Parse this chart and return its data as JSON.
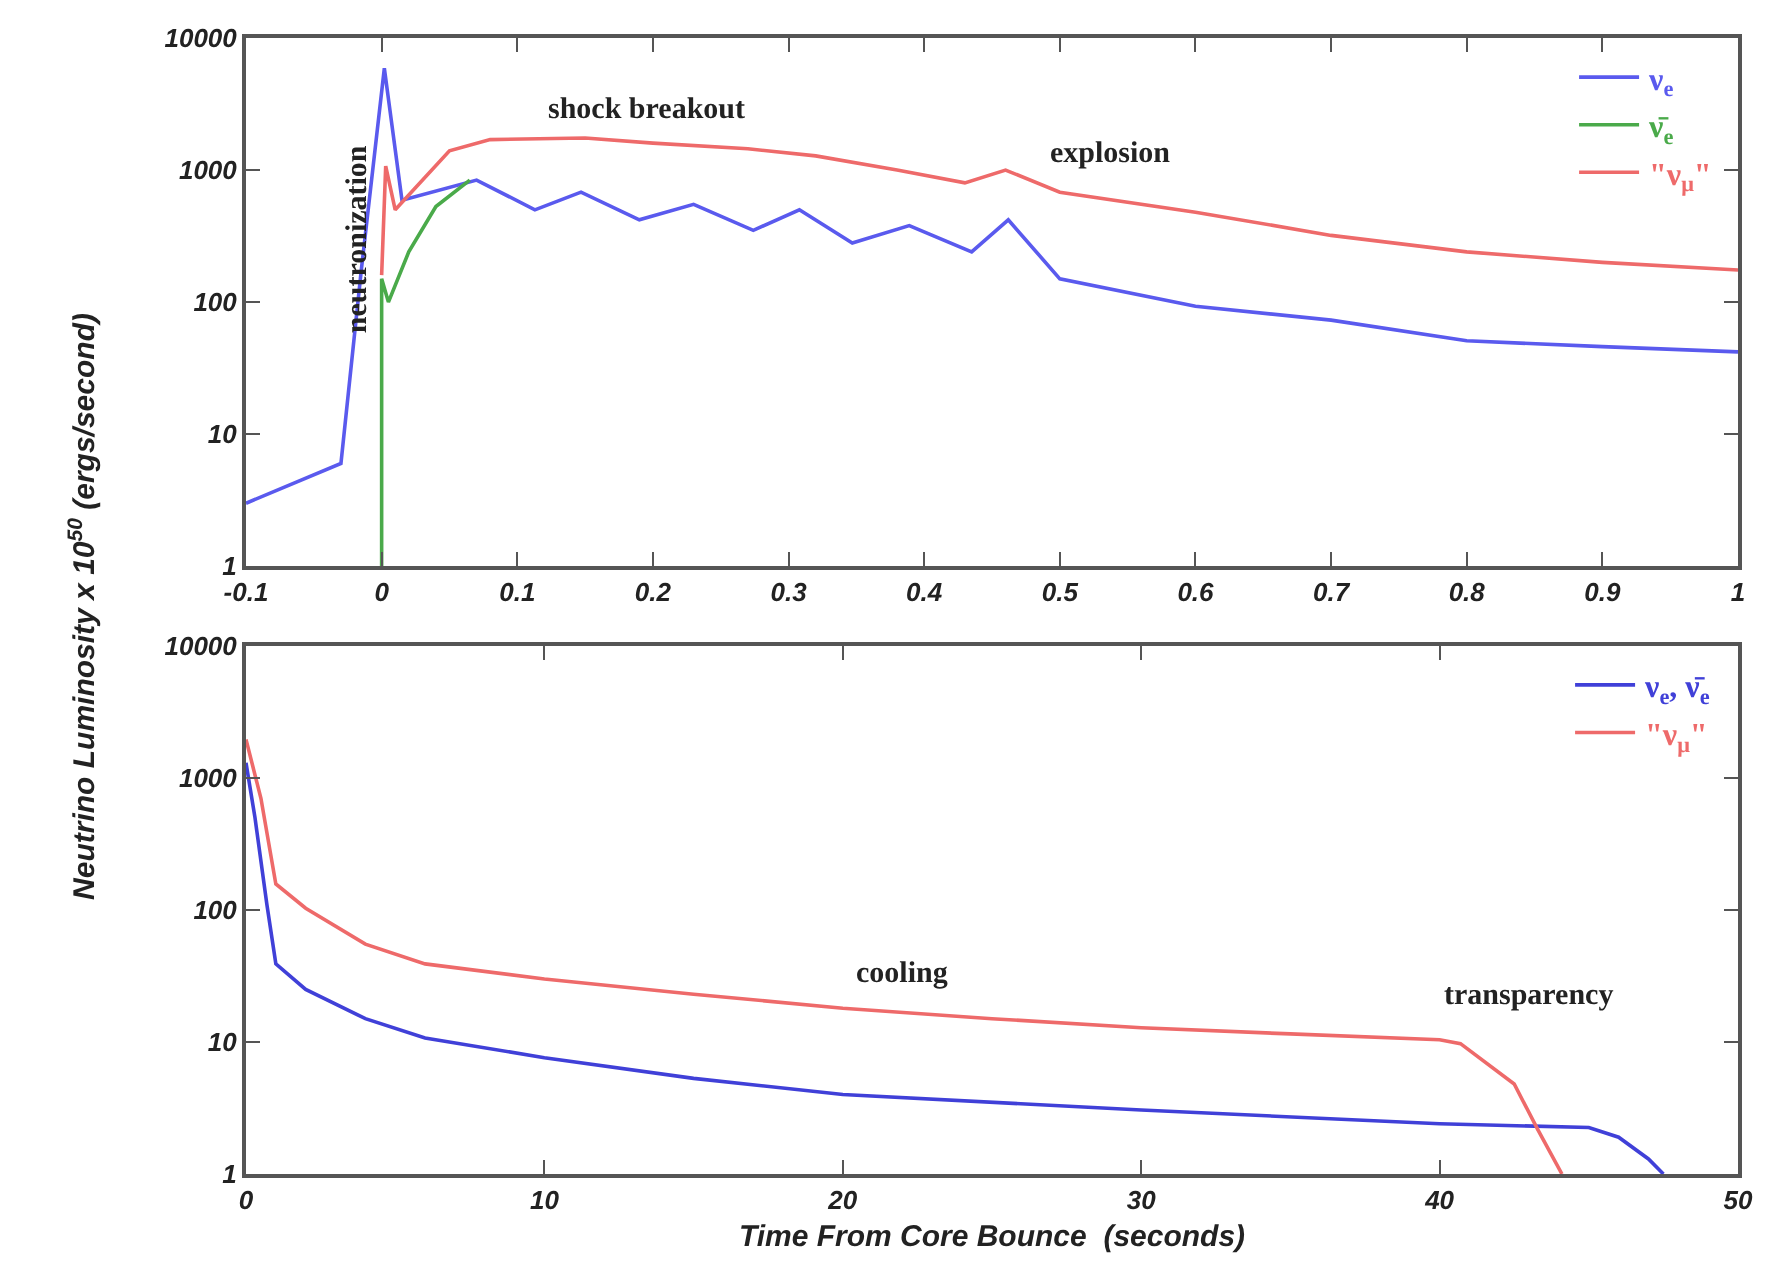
{
  "chart_data": [
    {
      "type": "line",
      "ylabel": "Neutrino Luminosity x 10$^{50}$ (ergs/second)",
      "log": "y",
      "legend": "top right",
      "line_style": "solid",
      "xlim": [
        -0.1,
        1
      ],
      "xticks": [
        -0.1,
        0,
        0.1,
        0.2,
        0.3,
        0.4,
        0.5,
        0.6,
        0.7,
        0.8,
        0.9,
        1
      ],
      "ylim": [
        1,
        10000
      ],
      "yticks": [
        1,
        10,
        100,
        1000,
        10000
      ],
      "series": [
        {
          "name": "ν$_{e}$",
          "color": "#5a5aee",
          "x": [
            -0.1,
            -0.03,
            -0.015,
            0.002,
            0.015,
            0.07,
            0.113,
            0.147,
            0.19,
            0.23,
            0.274,
            0.308,
            0.347,
            0.389,
            0.435,
            0.462,
            0.5,
            0.6,
            0.7,
            0.8,
            0.9,
            1
          ],
          "values": [
            3,
            6,
            175,
            5900,
            590,
            840,
            500,
            680,
            420,
            550,
            350,
            500,
            280,
            380,
            240,
            420,
            150,
            93,
            73,
            51,
            46,
            42
          ]
        },
        {
          "name": "ν̄$_{e}$",
          "color": "#4aaa4a",
          "x": [
            0,
            0,
            0.005,
            0.02,
            0.04,
            0.065
          ],
          "values": [
            1,
            150,
            100,
            240,
            530,
            840
          ]
        },
        {
          "name": "\"ν$_{μ}$\"",
          "color": "#ee6a6a",
          "x": [
            0,
            0.003,
            0.01,
            0.05,
            0.08,
            0.15,
            0.2,
            0.27,
            0.32,
            0.38,
            0.43,
            0.46,
            0.5,
            0.6,
            0.7,
            0.8,
            0.9,
            1
          ],
          "values": [
            160,
            1070,
            500,
            1400,
            1700,
            1750,
            1600,
            1450,
            1280,
            1000,
            800,
            1000,
            680,
            480,
            320,
            240,
            200,
            175
          ]
        }
      ],
      "annotations": [
        "neutronization",
        "shock breakout",
        "explosion"
      ]
    },
    {
      "type": "line",
      "xlabel": "Time From Core Bounce  (seconds)",
      "log": "y",
      "legend": "top right",
      "line_style": "solid",
      "xlim": [
        0,
        50
      ],
      "xticks": [
        0,
        10,
        20,
        30,
        40,
        50
      ],
      "ylim": [
        1,
        10000
      ],
      "yticks": [
        1,
        10,
        100,
        1000,
        10000
      ],
      "series": [
        {
          "name": "ν$_{e}$, ν̄$_{e}$",
          "color": "#4040d8",
          "x": [
            0,
            0.3,
            0.7,
            1,
            2,
            4,
            6,
            10,
            15,
            20,
            30,
            40,
            45,
            46,
            47,
            47.5
          ],
          "values": [
            1300,
            500,
            110,
            39,
            25,
            15,
            10.7,
            7.6,
            5.3,
            4,
            3.05,
            2.4,
            2.25,
            1.9,
            1.3,
            1
          ]
        },
        {
          "name": "\"ν$_{μ}$\"",
          "color": "#ee6a6a",
          "x": [
            0,
            0.5,
            1,
            2,
            4,
            6,
            10,
            15,
            20,
            25,
            30,
            35,
            40,
            40.7,
            42.5,
            43.3,
            44.1
          ],
          "values": [
            1950,
            700,
            157,
            103,
            55,
            39,
            30,
            23,
            18,
            15,
            12.8,
            11.5,
            10.4,
            9.7,
            4.8,
            2.15,
            1
          ]
        }
      ],
      "annotations": [
        "cooling",
        "transparency"
      ]
    }
  ]
}
